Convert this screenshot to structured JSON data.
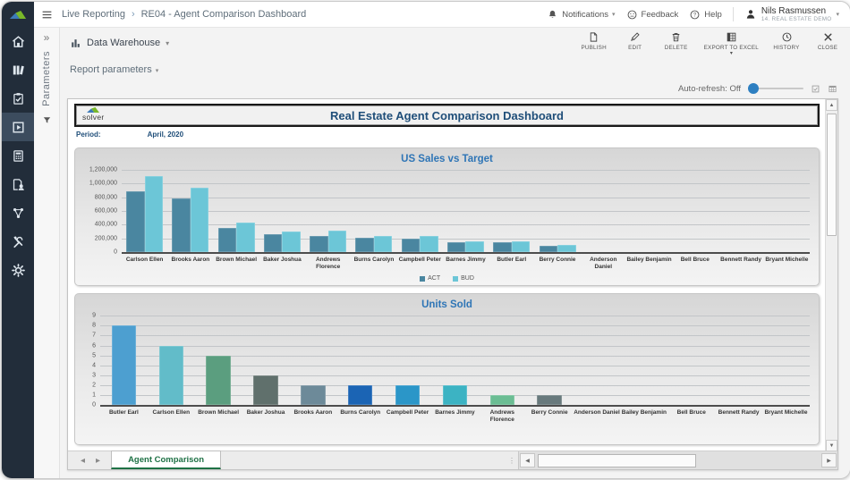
{
  "topbar": {
    "breadcrumb": [
      "Live Reporting",
      "RE04 - Agent Comparison Dashboard"
    ],
    "notifications_label": "Notifications",
    "feedback_label": "Feedback",
    "help_label": "Help",
    "user_name": "Nils Rasmussen",
    "user_org": "14. Real Estate Demo"
  },
  "sidebar": {
    "items": [
      {
        "name": "home",
        "icon": "home-icon",
        "active": false
      },
      {
        "name": "library",
        "icon": "library-icon",
        "active": false
      },
      {
        "name": "tasks",
        "icon": "clipboard-icon",
        "active": false
      },
      {
        "name": "live-reporting",
        "icon": "live-report-icon",
        "active": true
      },
      {
        "name": "budgeting",
        "icon": "calculator-icon",
        "active": false
      },
      {
        "name": "document-user",
        "icon": "document-user-icon",
        "active": false
      },
      {
        "name": "integrations",
        "icon": "connections-icon",
        "active": false
      },
      {
        "name": "administration",
        "icon": "tools-icon",
        "active": false
      },
      {
        "name": "settings",
        "icon": "gear-icon",
        "active": false
      }
    ]
  },
  "parameters_panel": {
    "label": "Parameters"
  },
  "toolbar": {
    "data_warehouse_label": "Data Warehouse",
    "buttons": [
      {
        "label": "PUBLISH",
        "icon": "page-icon",
        "caret": false
      },
      {
        "label": "EDIT",
        "icon": "pencil-icon",
        "caret": false
      },
      {
        "label": "DELETE",
        "icon": "trash-icon",
        "caret": false
      },
      {
        "label": "EXPORT TO EXCEL",
        "icon": "excel-icon",
        "caret": true
      },
      {
        "label": "HISTORY",
        "icon": "clock-icon",
        "caret": false
      },
      {
        "label": "CLOSE",
        "icon": "close-icon",
        "caret": false
      }
    ]
  },
  "report_parameters": {
    "label": "Report parameters"
  },
  "auto_refresh": {
    "label": "Auto-refresh: Off"
  },
  "report": {
    "logo_text": "solver",
    "title": "Real Estate Agent Comparison Dashboard",
    "period_label": "Period:",
    "period_value": "April, 2020",
    "sheet_tab": "Agent Comparison"
  },
  "chart_data": [
    {
      "type": "bar",
      "title": "US Sales vs Target",
      "categories": [
        "Carlson Ellen",
        "Brooks Aaron",
        "Brown Michael",
        "Baker Joshua",
        "Andrews Florence",
        "Burns Carolyn",
        "Campbell Peter",
        "Barnes Jimmy",
        "Butler Earl",
        "Berry Connie",
        "Anderson Daniel",
        "Bailey Benjamin",
        "Bell Bruce",
        "Bennett Randy",
        "Bryant Michelle"
      ],
      "series": [
        {
          "name": "ACT",
          "color": "#4a86a0",
          "values": [
            890000,
            785000,
            350000,
            255000,
            240000,
            215000,
            190000,
            150000,
            145000,
            90000,
            0,
            0,
            0,
            0,
            0
          ]
        },
        {
          "name": "BUD",
          "color": "#6cc6d7",
          "values": [
            1105000,
            935000,
            425000,
            295000,
            310000,
            235000,
            235000,
            155000,
            155000,
            110000,
            0,
            0,
            0,
            0,
            0
          ]
        }
      ],
      "xlabel": "",
      "ylabel": "",
      "ylim": [
        0,
        1200000
      ],
      "ytick_step": 200000,
      "grid": true,
      "legend_position": "bottom"
    },
    {
      "type": "bar",
      "title": "Units Sold",
      "categories": [
        "Butler Earl",
        "Carlson Ellen",
        "Brown Michael",
        "Baker Joshua",
        "Brooks Aaron",
        "Burns Carolyn",
        "Campbell Peter",
        "Barnes Jimmy",
        "Andrews Florence",
        "Berry Connie",
        "Anderson Daniel",
        "Bailey Benjamin",
        "Bell Bruce",
        "Bennett Randy",
        "Bryant Michelle"
      ],
      "values": [
        8,
        6,
        5,
        3,
        2,
        2,
        2,
        2,
        1,
        1,
        0,
        0,
        0,
        0,
        0
      ],
      "bar_colors": [
        "#4d9fd0",
        "#62bcc9",
        "#5b9e7f",
        "#60706c",
        "#6d8a99",
        "#1b64b4",
        "#2b96c8",
        "#3cb3c3",
        "#6bbd93",
        "#68797c",
        "#cccccc",
        "#cccccc",
        "#cccccc",
        "#cccccc",
        "#cccccc"
      ],
      "xlabel": "",
      "ylabel": "",
      "ylim": [
        0,
        9
      ],
      "ytick_step": 1,
      "grid": true,
      "legend_position": "none"
    }
  ]
}
